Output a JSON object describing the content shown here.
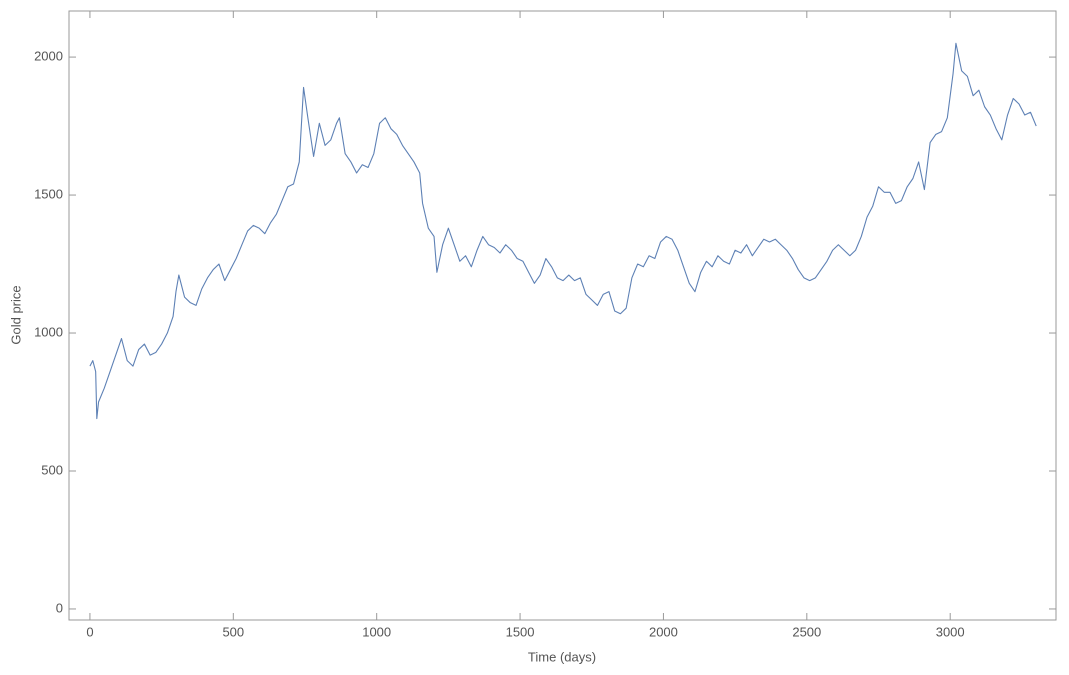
{
  "chart_data": {
    "type": "line",
    "x_label": "Time (days)",
    "y_label": "Gold price",
    "x": [
      0,
      10,
      20,
      24,
      30,
      50,
      70,
      100,
      110,
      130,
      150,
      170,
      190,
      210,
      230,
      250,
      270,
      290,
      300,
      310,
      330,
      350,
      370,
      390,
      410,
      430,
      450,
      470,
      490,
      510,
      530,
      550,
      570,
      590,
      610,
      630,
      650,
      670,
      690,
      710,
      730,
      745,
      760,
      780,
      800,
      820,
      840,
      860,
      870,
      890,
      910,
      930,
      950,
      970,
      990,
      1010,
      1030,
      1050,
      1070,
      1090,
      1110,
      1130,
      1150,
      1160,
      1180,
      1200,
      1210,
      1230,
      1250,
      1270,
      1290,
      1310,
      1330,
      1350,
      1370,
      1390,
      1410,
      1430,
      1450,
      1470,
      1490,
      1510,
      1530,
      1550,
      1570,
      1590,
      1610,
      1630,
      1650,
      1670,
      1690,
      1710,
      1730,
      1750,
      1770,
      1790,
      1810,
      1830,
      1850,
      1870,
      1890,
      1910,
      1930,
      1950,
      1970,
      1990,
      2010,
      2030,
      2050,
      2070,
      2090,
      2110,
      2130,
      2150,
      2170,
      2190,
      2210,
      2230,
      2250,
      2270,
      2290,
      2310,
      2330,
      2350,
      2370,
      2390,
      2410,
      2430,
      2450,
      2470,
      2490,
      2510,
      2530,
      2550,
      2570,
      2590,
      2610,
      2630,
      2650,
      2670,
      2690,
      2710,
      2730,
      2750,
      2770,
      2790,
      2810,
      2830,
      2850,
      2870,
      2890,
      2910,
      2930,
      2950,
      2970,
      2990,
      3010,
      3020,
      3040,
      3060,
      3080,
      3100,
      3120,
      3140,
      3160,
      3180,
      3200,
      3220,
      3240,
      3260,
      3280,
      3300
    ],
    "series": [
      {
        "name": "Gold price",
        "color": "#5e81b5",
        "values": [
          880,
          900,
          860,
          690,
          750,
          800,
          860,
          950,
          980,
          900,
          880,
          940,
          960,
          920,
          930,
          960,
          1000,
          1060,
          1150,
          1210,
          1130,
          1110,
          1100,
          1160,
          1200,
          1230,
          1250,
          1190,
          1230,
          1270,
          1320,
          1370,
          1390,
          1380,
          1360,
          1400,
          1430,
          1480,
          1530,
          1540,
          1620,
          1890,
          1780,
          1640,
          1760,
          1680,
          1700,
          1760,
          1780,
          1650,
          1620,
          1580,
          1610,
          1600,
          1650,
          1760,
          1780,
          1740,
          1720,
          1680,
          1650,
          1620,
          1580,
          1470,
          1380,
          1350,
          1220,
          1320,
          1380,
          1320,
          1260,
          1280,
          1240,
          1300,
          1350,
          1320,
          1310,
          1290,
          1320,
          1300,
          1270,
          1260,
          1220,
          1180,
          1210,
          1270,
          1240,
          1200,
          1190,
          1210,
          1190,
          1200,
          1140,
          1120,
          1100,
          1140,
          1150,
          1080,
          1070,
          1090,
          1200,
          1250,
          1240,
          1280,
          1270,
          1330,
          1350,
          1340,
          1300,
          1240,
          1180,
          1150,
          1220,
          1260,
          1240,
          1280,
          1260,
          1250,
          1300,
          1290,
          1320,
          1280,
          1310,
          1340,
          1330,
          1340,
          1320,
          1300,
          1270,
          1230,
          1200,
          1190,
          1200,
          1230,
          1260,
          1300,
          1320,
          1300,
          1280,
          1300,
          1350,
          1420,
          1460,
          1530,
          1510,
          1510,
          1470,
          1480,
          1530,
          1560,
          1620,
          1520,
          1690,
          1720,
          1730,
          1780,
          1940,
          2050,
          1950,
          1930,
          1860,
          1880,
          1820,
          1790,
          1740,
          1700,
          1790,
          1850,
          1830,
          1790,
          1800,
          1750
        ]
      }
    ],
    "xlim": [
      -73,
      3369
    ],
    "ylim": [
      -40,
      2167
    ],
    "xticks": [
      0,
      500,
      1000,
      1500,
      2000,
      2500,
      3000
    ],
    "yticks": [
      0,
      500,
      1000,
      1500,
      2000
    ]
  }
}
